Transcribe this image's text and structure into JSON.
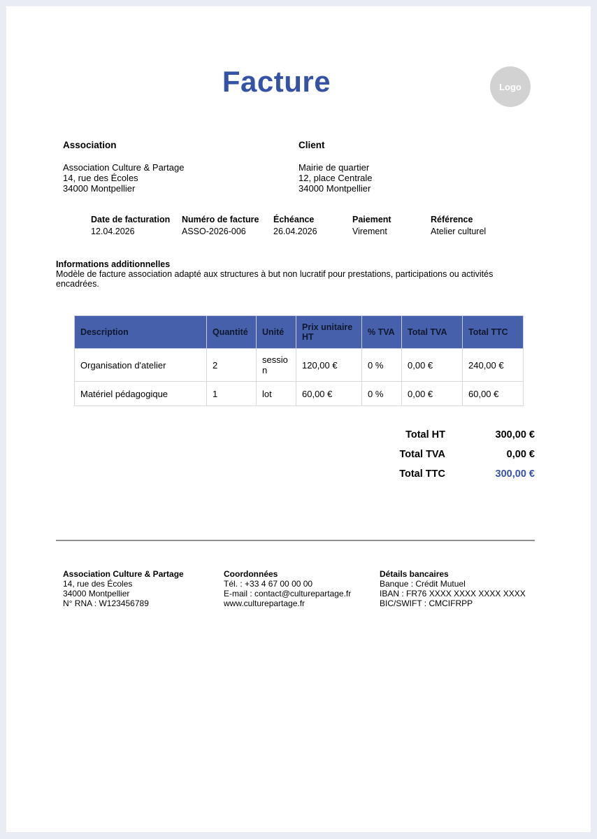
{
  "header": {
    "title": "Facture",
    "logo_text": "Logo"
  },
  "colors": {
    "accent_blue": "#3553a4",
    "table_header_bg": "#4660ab",
    "page_background": "#e9ecf3",
    "logo_gray": "#d2d2d2"
  },
  "parties": {
    "association": {
      "heading": "Association",
      "lines": [
        "Association Culture & Partage",
        "14, rue des Écoles",
        "34000 Montpellier"
      ]
    },
    "client": {
      "heading": "Client",
      "lines": [
        "Mairie de quartier",
        "12, place Centrale",
        "34000 Montpellier"
      ]
    }
  },
  "meta": [
    {
      "label": "Date de facturation",
      "value": "12.04.2026"
    },
    {
      "label": "Numéro de facture",
      "value": "ASSO-2026-006"
    },
    {
      "label": "Échéance",
      "value": "26.04.2026"
    },
    {
      "label": "Paiement",
      "value": "Virement"
    },
    {
      "label": "Référence",
      "value": "Atelier culturel"
    }
  ],
  "additional_info": {
    "heading": "Informations additionnelles",
    "text": "Modèle de facture association adapté aux structures à but non lucratif pour prestations, participations ou activités encadrées."
  },
  "items_table": {
    "headers": [
      "Description",
      "Quantité",
      "Unité",
      "Prix unitaire HT",
      "% TVA",
      "Total TVA",
      "Total TTC"
    ],
    "rows": [
      [
        "Organisation d'atelier",
        "2",
        "session",
        "120,00 €",
        "0 %",
        "0,00 €",
        "240,00 €"
      ],
      [
        "Matériel pédagogique",
        "1",
        "lot",
        "60,00 €",
        "0 %",
        "0,00 €",
        "60,00 €"
      ]
    ]
  },
  "totals": [
    {
      "label": "Total HT",
      "value": "300,00 €"
    },
    {
      "label": "Total TVA",
      "value": "0,00 €"
    },
    {
      "label": "Total TTC",
      "value": "300,00 €"
    }
  ],
  "footer": {
    "columns": [
      {
        "heading": "Association Culture & Partage",
        "lines": [
          "14, rue des Écoles",
          "34000 Montpellier",
          "N° RNA : W123456789"
        ]
      },
      {
        "heading": "Coordonnées",
        "lines": [
          "Tél. : +33 4 67 00 00 00",
          "E-mail : contact@culturepartage.fr",
          "www.culturepartage.fr"
        ]
      },
      {
        "heading": "Détails bancaires",
        "lines": [
          "Banque : Crédit Mutuel",
          "IBAN : FR76 XXXX XXXX XXXX XXXX",
          "BIC/SWIFT : CMCIFRPP"
        ]
      }
    ]
  }
}
